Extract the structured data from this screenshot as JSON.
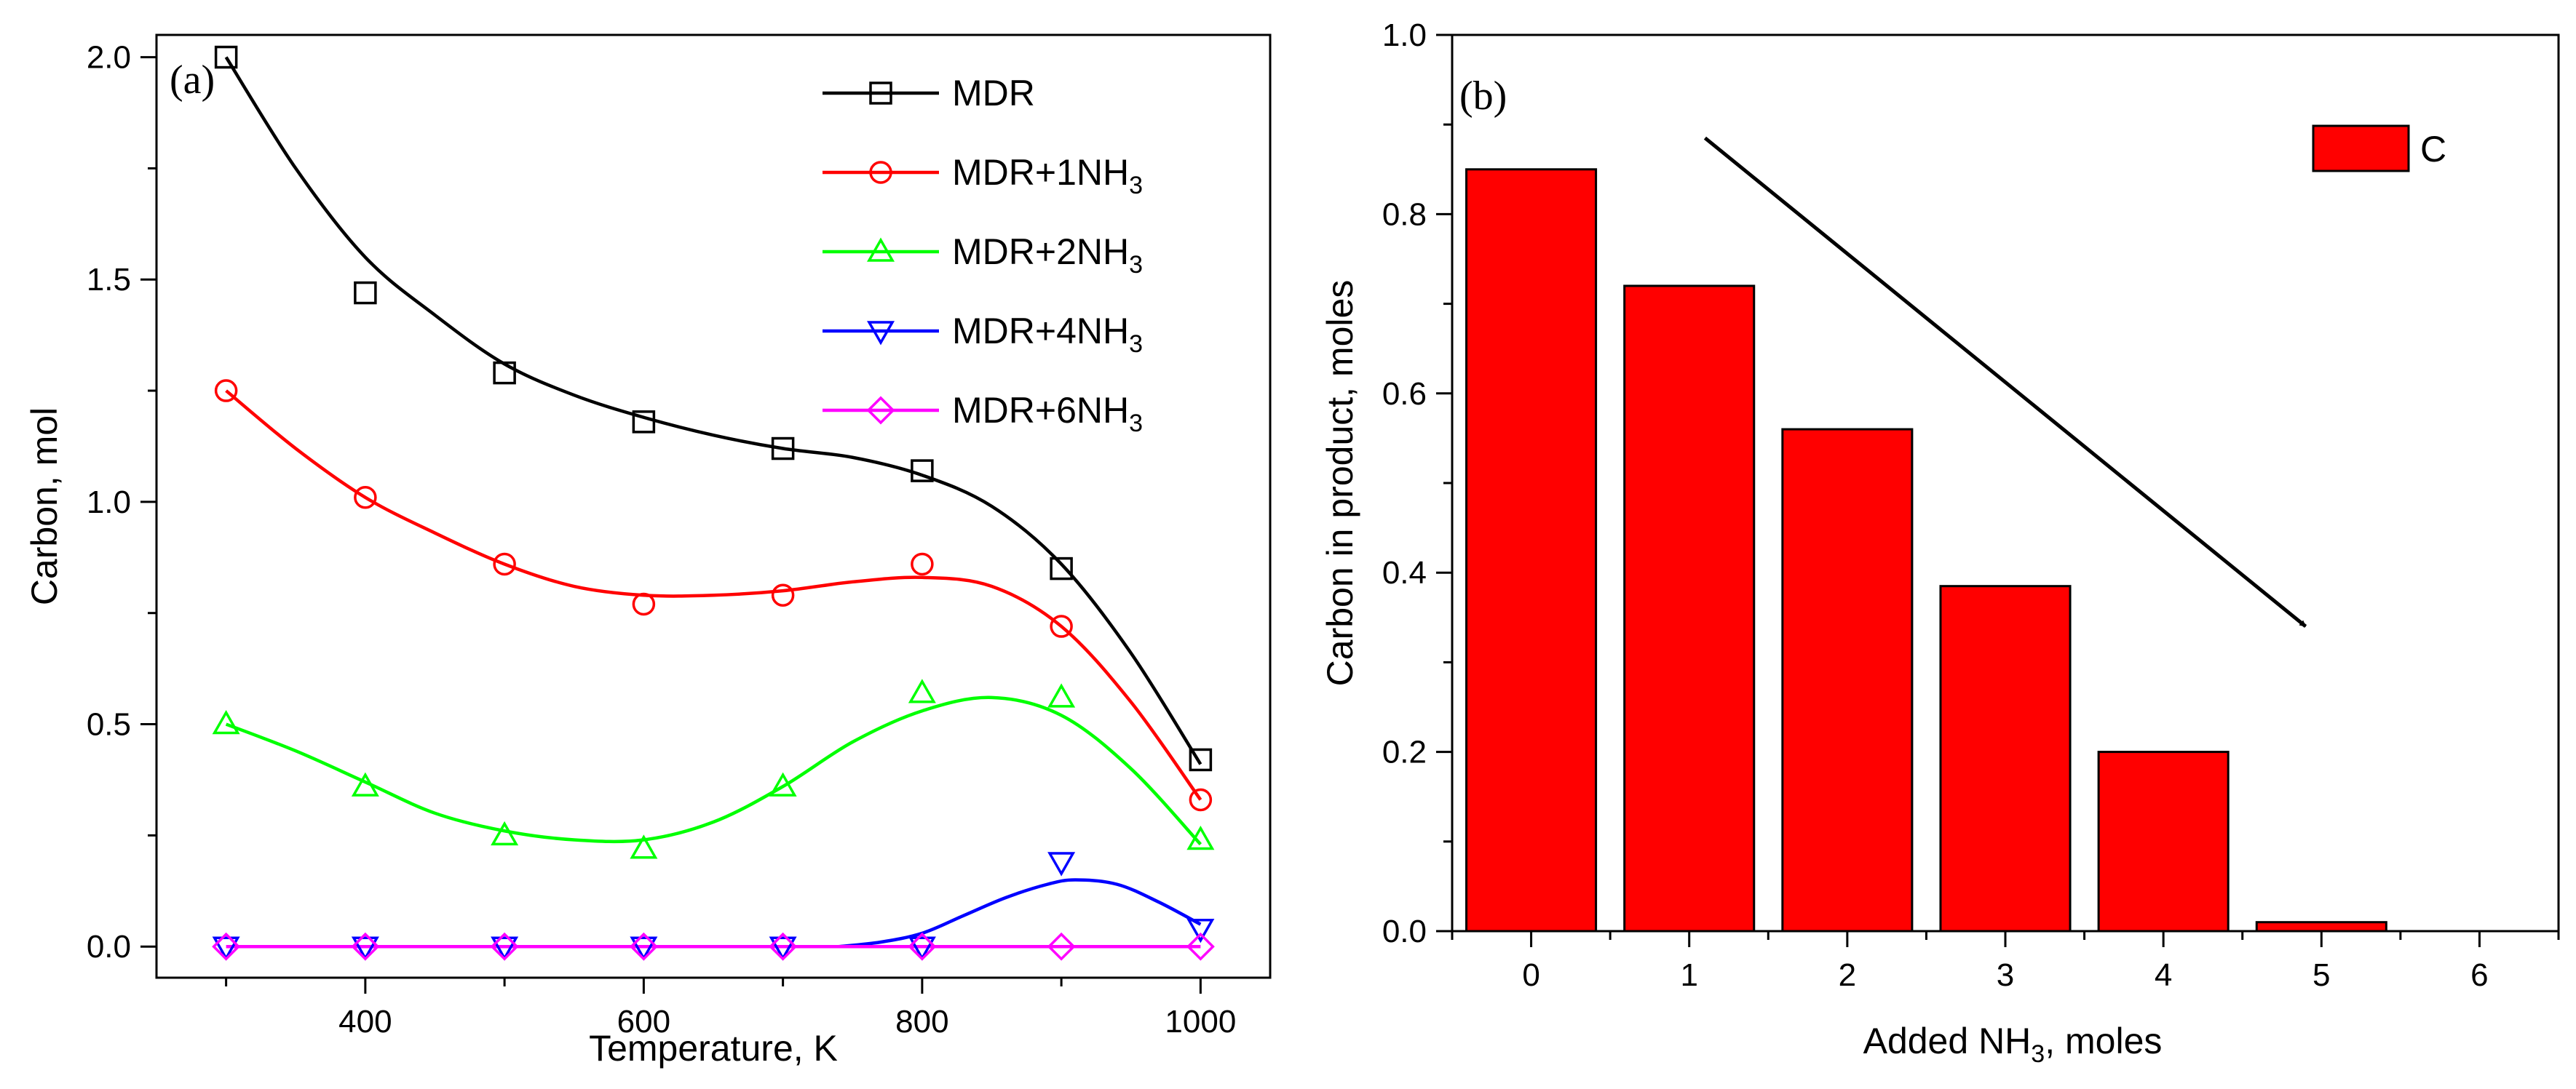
{
  "chart_data": [
    {
      "panel": "(a)",
      "type": "line",
      "xlabel": "Temperature, K",
      "ylabel": "Carbon, mol",
      "xlim": [
        250,
        1050
      ],
      "ylim": [
        -0.07,
        2.05
      ],
      "xticks": [
        400,
        600,
        800,
        1000
      ],
      "yticks": [
        0.0,
        0.5,
        1.0,
        1.5,
        2.0
      ],
      "ytick_labels": [
        "0.0",
        "0.5",
        "1.0",
        "1.5",
        "2.0"
      ],
      "legend_position": "top-right",
      "x": [
        300,
        400,
        500,
        600,
        700,
        800,
        900,
        1000
      ],
      "series": [
        {
          "name": "MDR",
          "sub": "",
          "color": "#000000",
          "marker": "square",
          "values": [
            2.0,
            1.47,
            1.29,
            1.18,
            1.12,
            1.07,
            0.85,
            0.42
          ],
          "curve": [
            [
              300,
              2.0
            ],
            [
              350,
              1.75
            ],
            [
              400,
              1.55
            ],
            [
              450,
              1.42
            ],
            [
              500,
              1.31
            ],
            [
              550,
              1.24
            ],
            [
              600,
              1.19
            ],
            [
              650,
              1.15
            ],
            [
              700,
              1.12
            ],
            [
              750,
              1.1
            ],
            [
              800,
              1.06
            ],
            [
              850,
              0.99
            ],
            [
              900,
              0.86
            ],
            [
              950,
              0.66
            ],
            [
              1000,
              0.41
            ]
          ]
        },
        {
          "name": "MDR+1NH",
          "sub": "3",
          "color": "#ff0000",
          "marker": "circle",
          "values": [
            1.25,
            1.01,
            0.86,
            0.77,
            0.79,
            0.86,
            0.72,
            0.33
          ],
          "curve": [
            [
              300,
              1.25
            ],
            [
              350,
              1.12
            ],
            [
              400,
              1.01
            ],
            [
              450,
              0.93
            ],
            [
              500,
              0.86
            ],
            [
              550,
              0.81
            ],
            [
              600,
              0.79
            ],
            [
              650,
              0.79
            ],
            [
              700,
              0.8
            ],
            [
              750,
              0.82
            ],
            [
              800,
              0.83
            ],
            [
              850,
              0.81
            ],
            [
              900,
              0.72
            ],
            [
              950,
              0.55
            ],
            [
              1000,
              0.33
            ]
          ]
        },
        {
          "name": "MDR+2NH",
          "sub": "3",
          "color": "#00ff00",
          "marker": "triangle-up",
          "values": [
            0.5,
            0.36,
            0.25,
            0.22,
            0.36,
            0.57,
            0.56,
            0.24
          ],
          "curve": [
            [
              300,
              0.5
            ],
            [
              350,
              0.44
            ],
            [
              400,
              0.37
            ],
            [
              450,
              0.3
            ],
            [
              500,
              0.26
            ],
            [
              550,
              0.24
            ],
            [
              600,
              0.24
            ],
            [
              650,
              0.28
            ],
            [
              700,
              0.36
            ],
            [
              750,
              0.46
            ],
            [
              800,
              0.53
            ],
            [
              850,
              0.56
            ],
            [
              900,
              0.52
            ],
            [
              950,
              0.4
            ],
            [
              1000,
              0.23
            ]
          ]
        },
        {
          "name": "MDR+4NH",
          "sub": "3",
          "color": "#0000ff",
          "marker": "triangle-down",
          "values": [
            0.0,
            0.0,
            0.0,
            0.0,
            0.0,
            0.0,
            0.19,
            0.04
          ],
          "curve": [
            [
              740,
              0.0
            ],
            [
              770,
              0.01
            ],
            [
              800,
              0.03
            ],
            [
              830,
              0.07
            ],
            [
              860,
              0.11
            ],
            [
              890,
              0.14
            ],
            [
              910,
              0.15
            ],
            [
              940,
              0.14
            ],
            [
              970,
              0.1
            ],
            [
              1000,
              0.05
            ]
          ]
        },
        {
          "name": "MDR+6NH",
          "sub": "3",
          "color": "#ff00ff",
          "marker": "diamond",
          "values": [
            0.0,
            0.0,
            0.0,
            0.0,
            0.0,
            0.0,
            0.0,
            0.0
          ],
          "curve": [
            [
              300,
              0.0
            ],
            [
              1000,
              0.0
            ]
          ]
        }
      ]
    },
    {
      "panel": "(b)",
      "type": "bar",
      "xlabel_pre": "Added NH",
      "xlabel_sub": "3",
      "xlabel_post": ", moles",
      "ylabel": "Carbon in product, moles",
      "xlim": [
        -0.5,
        6.5
      ],
      "ylim": [
        0,
        1.0
      ],
      "xticks": [
        0,
        1,
        2,
        3,
        4,
        5,
        6
      ],
      "yticks": [
        0.0,
        0.2,
        0.4,
        0.6,
        0.8,
        1.0
      ],
      "ytick_labels": [
        "0.0",
        "0.2",
        "0.4",
        "0.6",
        "0.8",
        "1.0"
      ],
      "categories": [
        0,
        1,
        2,
        3,
        4,
        5,
        6
      ],
      "values": [
        0.85,
        0.72,
        0.56,
        0.385,
        0.2,
        0.01,
        0.0
      ],
      "bar_color": "#ff0000",
      "legend": [
        "C"
      ],
      "legend_position": "top-right",
      "annotation_arrow": {
        "from": [
          1.1,
          0.885
        ],
        "to": [
          4.9,
          0.34
        ],
        "meaning": "decreasing trend"
      }
    }
  ]
}
